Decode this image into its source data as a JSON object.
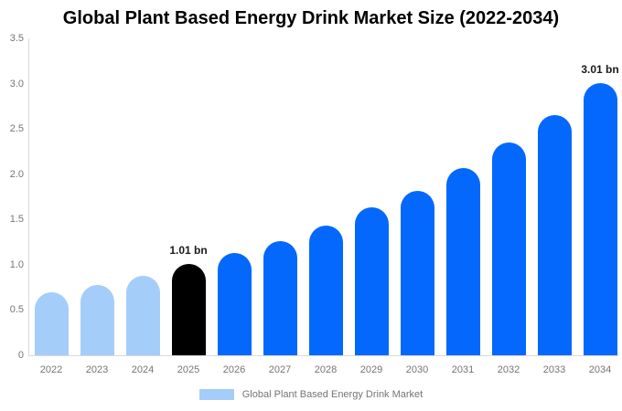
{
  "title": "Global Plant Based Energy Drink Market Size (2022-2034)",
  "chart_data": {
    "type": "bar",
    "categories": [
      "2022",
      "2023",
      "2024",
      "2025",
      "2026",
      "2027",
      "2028",
      "2029",
      "2030",
      "2031",
      "2032",
      "2033",
      "2034"
    ],
    "values": [
      0.7,
      0.78,
      0.88,
      1.01,
      1.13,
      1.26,
      1.43,
      1.63,
      1.82,
      2.07,
      2.35,
      2.65,
      3.01
    ],
    "bar_colors": [
      "#a4cdfa",
      "#a4cdfa",
      "#a4cdfa",
      "#000000",
      "#0568fd",
      "#0568fd",
      "#0568fd",
      "#0568fd",
      "#0568fd",
      "#0568fd",
      "#0568fd",
      "#0568fd",
      "#0568fd"
    ],
    "annotations": [
      {
        "category": "2025",
        "text": "1.01 bn"
      },
      {
        "category": "2034",
        "text": "3.01 bn"
      }
    ],
    "y_ticks": [
      "0",
      "0.5",
      "1.0",
      "1.5",
      "2.0",
      "2.5",
      "3.0",
      "3.5"
    ],
    "ylim": [
      0,
      3.5
    ],
    "grid": false,
    "legend": {
      "position": "bottom",
      "items": [
        {
          "label": "Global Plant Based Energy Drink Market",
          "color": "#a4cdfa"
        }
      ]
    },
    "colors": {
      "historical_bar": "#a4cdfa",
      "highlight_bar": "#000000",
      "forecast_bar": "#0568fd",
      "axis_line": "#d9d9d9",
      "tick_text": "#757575",
      "annotation_text": "#1a1a1a",
      "title_text": "#000000"
    }
  }
}
